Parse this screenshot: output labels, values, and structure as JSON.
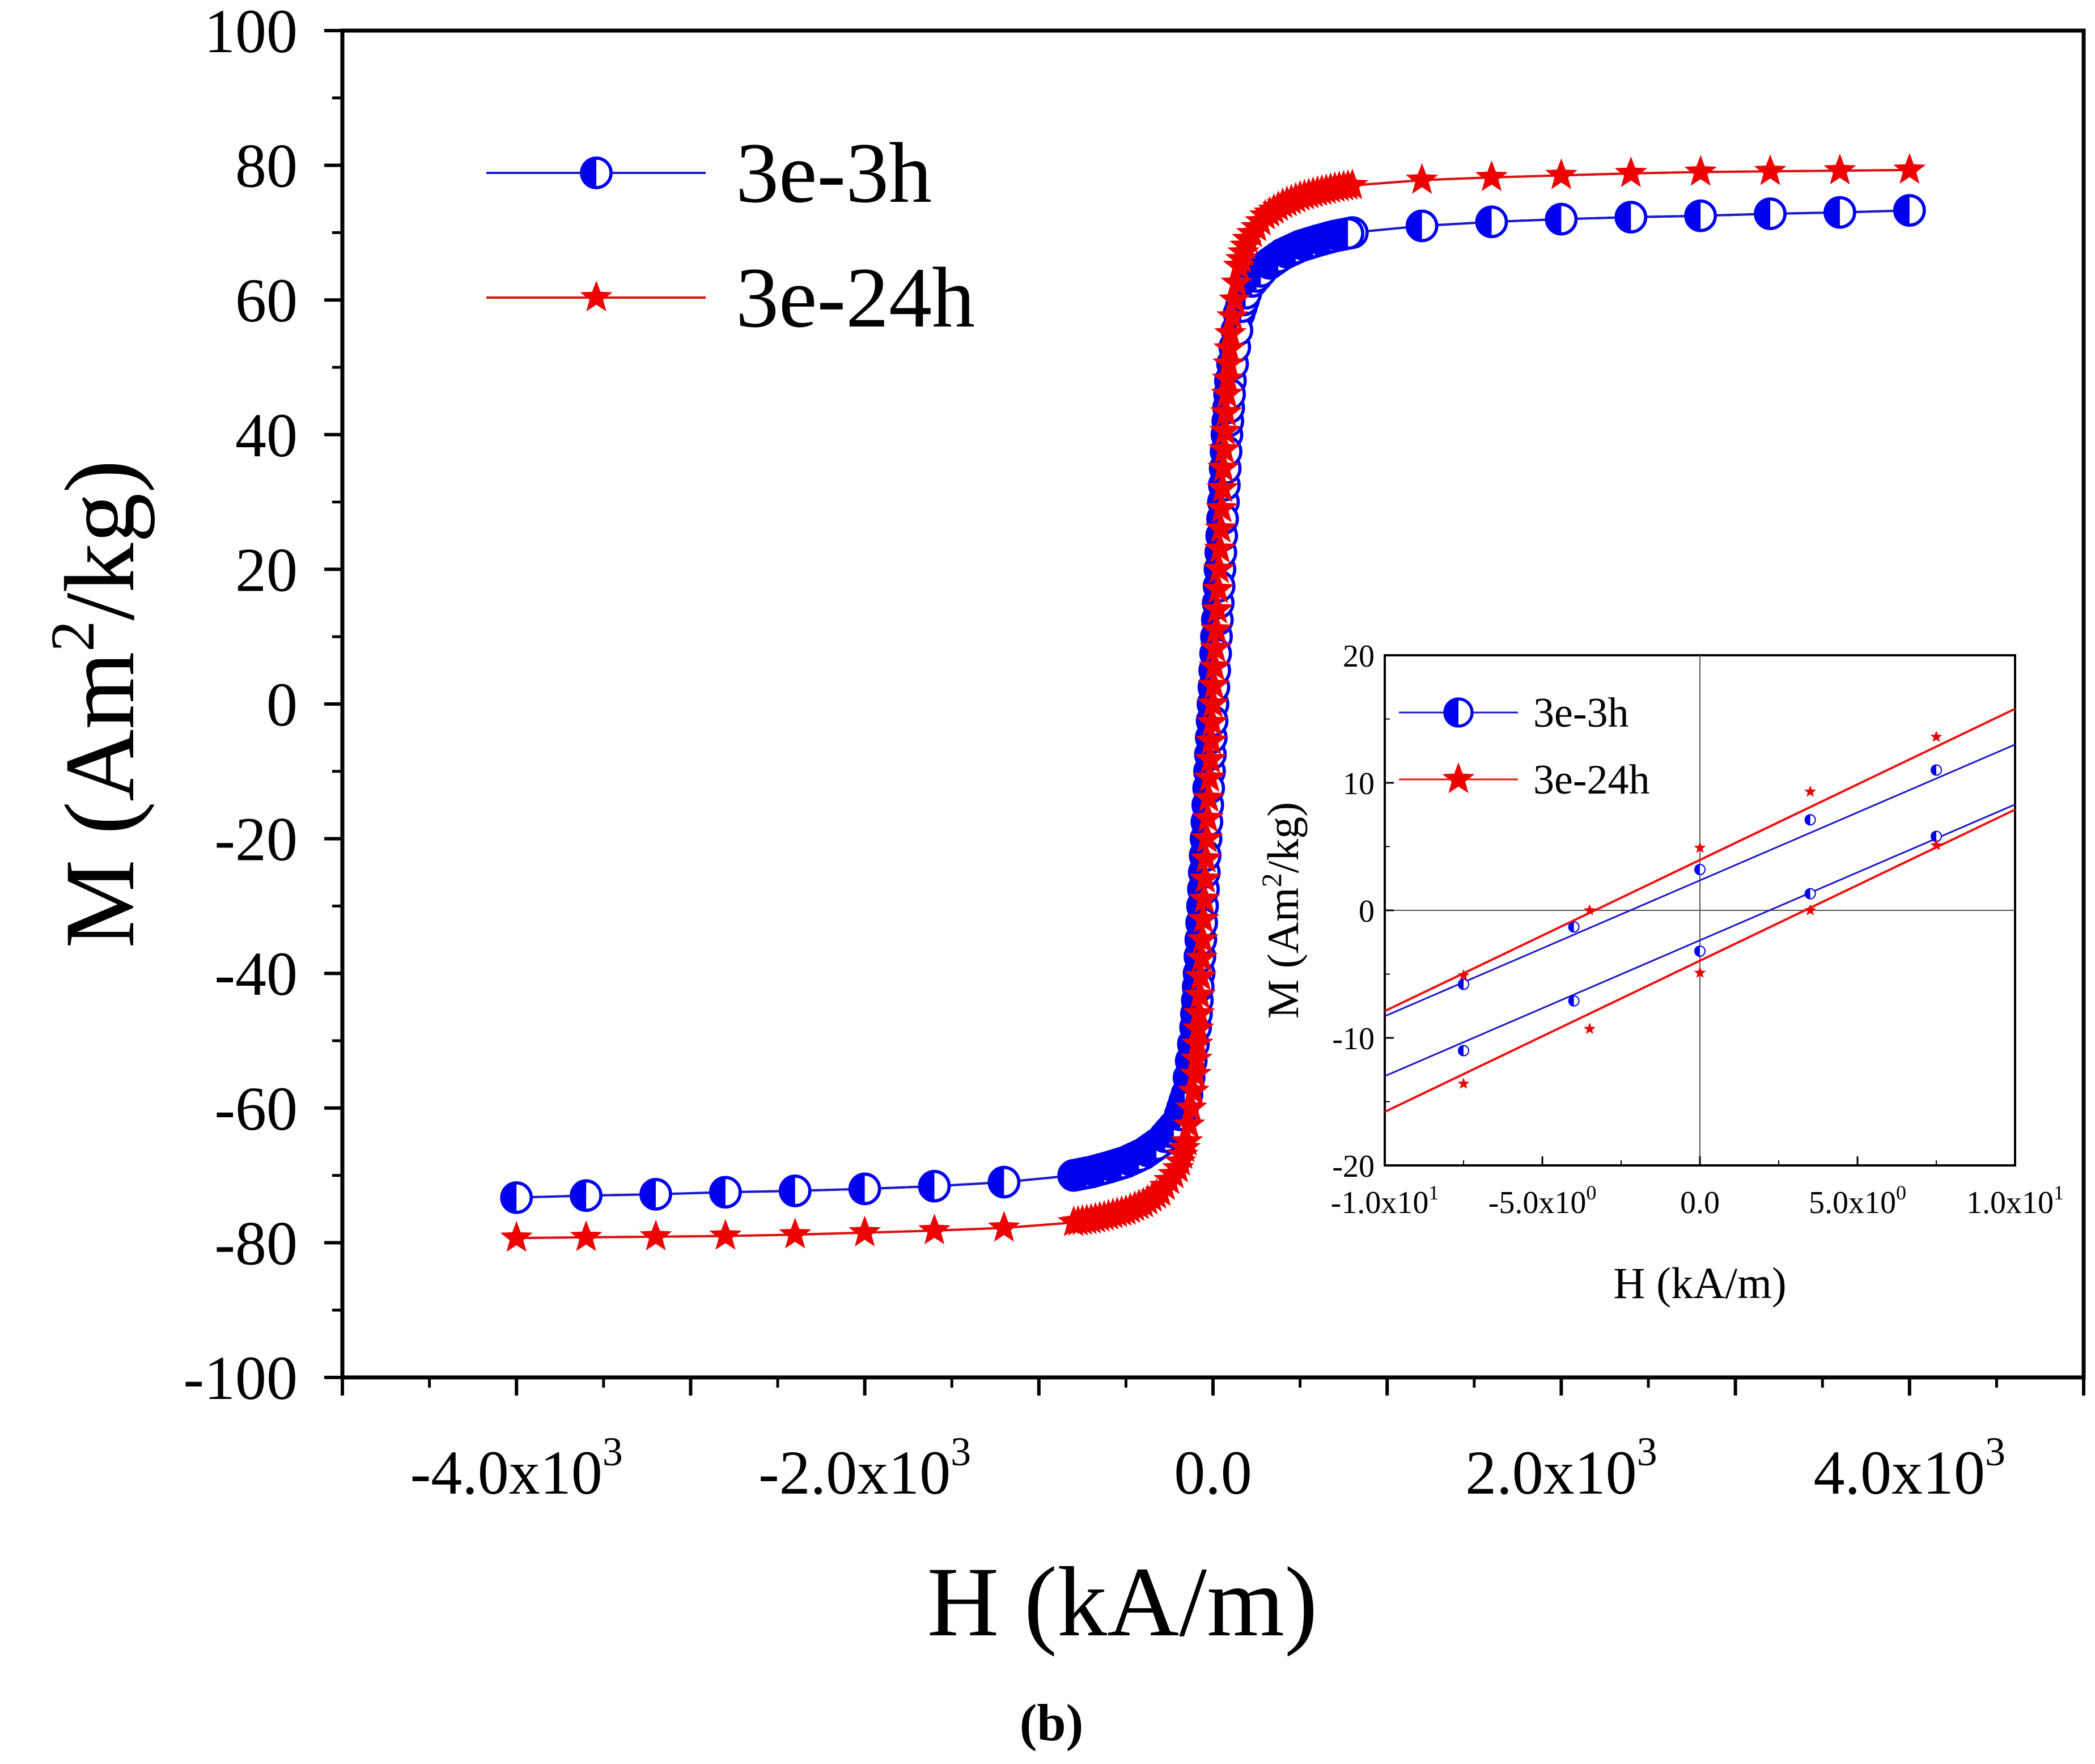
{
  "chart_data": [
    {
      "type": "scatter",
      "id": "main",
      "xlabel": "H (kA/m)",
      "ylabel_main": "M (Am",
      "ylabel_sup": "2",
      "ylabel_tail": "/kg)",
      "xlim": [
        -5000,
        5000
      ],
      "ylim": [
        -100,
        100
      ],
      "x_ticks": [
        {
          "value": -4000,
          "mant": "-4.0x10",
          "exp": "3"
        },
        {
          "value": -2000,
          "mant": "-2.0x10",
          "exp": "3"
        },
        {
          "value": 0,
          "mant": "0.0",
          "exp": ""
        },
        {
          "value": 2000,
          "mant": "2.0x10",
          "exp": "3"
        },
        {
          "value": 4000,
          "mant": "4.0x10",
          "exp": "3"
        }
      ],
      "y_ticks": [
        {
          "value": 100,
          "label": "100"
        },
        {
          "value": 80,
          "label": "80"
        },
        {
          "value": 60,
          "label": "60"
        },
        {
          "value": 40,
          "label": "40"
        },
        {
          "value": 20,
          "label": "20"
        },
        {
          "value": 0,
          "label": "0"
        },
        {
          "value": -20,
          "label": "-20"
        },
        {
          "value": -40,
          "label": "-40"
        },
        {
          "value": -60,
          "label": "-60"
        },
        {
          "value": -80,
          "label": "-80"
        },
        {
          "value": -100,
          "label": "-100"
        }
      ],
      "legend_position": "top-left",
      "series": [
        {
          "name": "3e-3h",
          "color": "#0000ee",
          "line_color": "#1a1acc",
          "marker": "half-filled-circle",
          "x": [
            -4000,
            -3600,
            -3200,
            -2800,
            -2400,
            -2000,
            -1600,
            -1200,
            -800,
            -700,
            -600,
            -500,
            -400,
            -300,
            -200,
            -150,
            -100,
            -80,
            -60,
            -40,
            -20,
            0,
            20,
            40,
            60,
            80,
            100,
            150,
            200,
            300,
            400,
            500,
            600,
            700,
            800,
            1200,
            1600,
            2000,
            2400,
            2800,
            3200,
            3600,
            4000
          ],
          "y": [
            -73.3,
            -73.0,
            -72.8,
            -72.5,
            -72.3,
            -72.0,
            -71.6,
            -71.0,
            -70.0,
            -69.5,
            -68.8,
            -68.0,
            -66.8,
            -65.0,
            -62.0,
            -58.0,
            -48.0,
            -40.0,
            -30.0,
            -20.0,
            -10.0,
            0,
            10.0,
            20.0,
            30.0,
            40.0,
            48.0,
            58.0,
            62.0,
            65.0,
            66.8,
            68.0,
            68.8,
            69.5,
            70.0,
            71.0,
            71.6,
            72.0,
            72.3,
            72.5,
            72.8,
            73.0,
            73.3
          ]
        },
        {
          "name": "3e-24h",
          "color": "#ee0000",
          "line_color": "#dd1111",
          "marker": "star",
          "x": [
            -4000,
            -3600,
            -3200,
            -2800,
            -2400,
            -2000,
            -1600,
            -1200,
            -800,
            -700,
            -600,
            -500,
            -400,
            -300,
            -200,
            -150,
            -100,
            -80,
            -60,
            -40,
            -20,
            0,
            20,
            40,
            60,
            80,
            100,
            150,
            200,
            300,
            400,
            500,
            600,
            700,
            800,
            1200,
            1600,
            2000,
            2400,
            2800,
            3200,
            3600,
            4000
          ],
          "y": [
            -79.3,
            -79.2,
            -79.1,
            -79.0,
            -78.8,
            -78.5,
            -78.2,
            -77.8,
            -77.0,
            -76.6,
            -76.0,
            -75.3,
            -74.2,
            -72.5,
            -69.0,
            -65.0,
            -55.0,
            -46.0,
            -35.0,
            -23.0,
            -11.0,
            0,
            11.0,
            23.0,
            35.0,
            46.0,
            55.0,
            65.0,
            69.0,
            72.5,
            74.2,
            75.3,
            76.0,
            76.6,
            77.0,
            77.8,
            78.2,
            78.5,
            78.8,
            79.0,
            79.1,
            79.2,
            79.3
          ]
        }
      ]
    },
    {
      "type": "line",
      "id": "inset",
      "position": "inset lower-right",
      "xlabel": "H (kA/m)",
      "ylabel_main": "M (Am",
      "ylabel_sup": "2",
      "ylabel_tail": "/kg)",
      "xlim": [
        -10,
        10
      ],
      "ylim": [
        -20,
        20
      ],
      "x_ticks": [
        {
          "value": -10,
          "mant": "-1.0x10",
          "exp": "1"
        },
        {
          "value": -5,
          "mant": "-5.0x10",
          "exp": "0"
        },
        {
          "value": 0,
          "mant": "0.0",
          "exp": ""
        },
        {
          "value": 5,
          "mant": "5.0x10",
          "exp": "0"
        },
        {
          "value": 10,
          "mant": "1.0x10",
          "exp": "1"
        }
      ],
      "y_ticks": [
        {
          "value": 20,
          "label": "20"
        },
        {
          "value": 10,
          "label": "10"
        },
        {
          "value": 0,
          "label": "0"
        },
        {
          "value": -10,
          "label": "-10"
        },
        {
          "value": -20,
          "label": "-20"
        }
      ],
      "legend_position": "top-left",
      "series": [
        {
          "name": "3e-3h",
          "color": "#0000ee",
          "line_color": "#1a1acc",
          "marker": "half-filled-circle",
          "branches": [
            {
              "x": [
                -10,
                10
              ],
              "y": [
                -8.3,
                13.0
              ],
              "points_x": [
                -7.5,
                -4,
                0,
                3.5,
                7.5
              ],
              "points_y": [
                -5.8,
                -1.3,
                3.2,
                7.1,
                11.0
              ]
            },
            {
              "x": [
                -10,
                10
              ],
              "y": [
                -13.0,
                8.3
              ],
              "points_x": [
                -7.5,
                -4,
                0,
                3.5,
                7.5
              ],
              "points_y": [
                -11.0,
                -7.1,
                -3.2,
                1.3,
                5.8
              ]
            }
          ]
        },
        {
          "name": "3e-24h",
          "color": "#ee0000",
          "line_color": "#ee1111",
          "marker": "star",
          "branches": [
            {
              "x": [
                -10,
                10
              ],
              "y": [
                -7.9,
                15.8
              ],
              "points_x": [
                -7.5,
                -3.5,
                0,
                3.5,
                7.5
              ],
              "points_y": [
                -5.1,
                0,
                4.9,
                9.3,
                13.6
              ]
            },
            {
              "x": [
                -10,
                10
              ],
              "y": [
                -15.8,
                7.9
              ],
              "points_x": [
                -7.5,
                -3.5,
                0,
                3.5,
                7.5
              ],
              "points_y": [
                -13.6,
                -9.3,
                -4.9,
                0,
                5.1
              ]
            }
          ]
        }
      ]
    }
  ],
  "caption": "(b)"
}
